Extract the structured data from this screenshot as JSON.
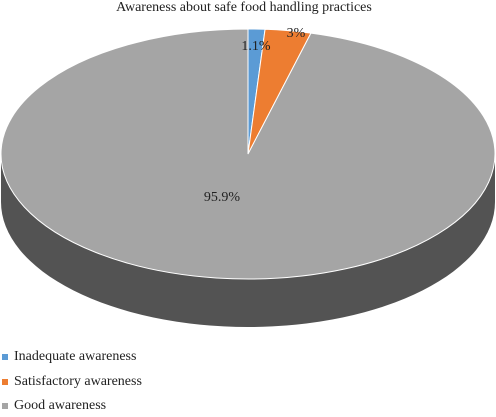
{
  "chart_data": {
    "type": "pie",
    "style": "3d",
    "title": "Awareness about safe food handling practices",
    "series": [
      {
        "name": "Inadequate awareness",
        "value": 1.1,
        "label": "1.1%",
        "color": "#5B9BD5"
      },
      {
        "name": "Satisfactory awareness",
        "value": 3.0,
        "label": "3%",
        "color": "#ED7D31"
      },
      {
        "name": "Good awareness",
        "value": 95.9,
        "label": "95.9%",
        "color": "#A5A5A5"
      }
    ],
    "legend": "bottom-left"
  }
}
